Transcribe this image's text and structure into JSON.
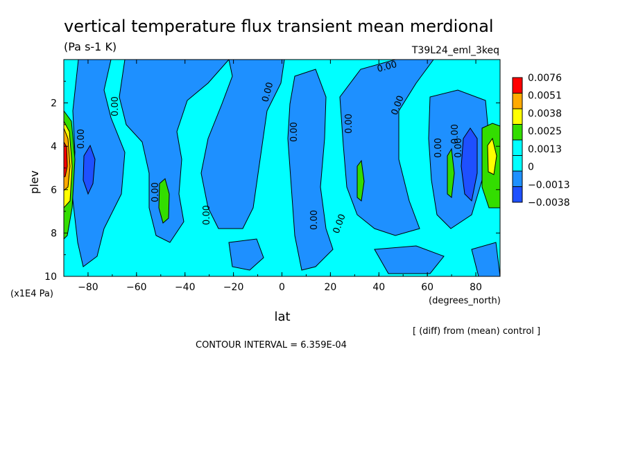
{
  "chart_data": {
    "type": "heatmap",
    "title": "vertical temperature flux transient mean merdional",
    "units": "(Pa s-1 K)",
    "experiment": "T39L24_eml_3keq",
    "xlabel": "lat",
    "xunits": "(degrees_north)",
    "ylabel": "plev",
    "yunits": "(x1E4 Pa)",
    "xlim": [
      -90,
      90
    ],
    "ylim": [
      0,
      10
    ],
    "y_inverted": true,
    "xticks": [
      -80,
      -60,
      -40,
      -20,
      0,
      20,
      40,
      60,
      80
    ],
    "yticks": [
      2,
      4,
      6,
      8,
      10
    ],
    "legend_position": "right",
    "colorbar": {
      "labels": [
        "0.0076",
        "0.0051",
        "0.0038",
        "0.0025",
        "0.0013",
        "0",
        "−0.0013",
        "−0.0038"
      ],
      "colors": [
        "#ff0000",
        "#ffaa00",
        "#ffff00",
        "#33dd00",
        "#00ffff",
        "#00ffff",
        "#1e90ff",
        "#1e50ff"
      ]
    },
    "contour_labels": [
      "0.00",
      "0.00",
      "0.00",
      "0.00",
      "0.00",
      "0.00",
      "0.00",
      "0.00",
      "0.00",
      "0.00",
      "0.00",
      "0.00",
      "0.00",
      "0.00"
    ],
    "contour_interval_text": "CONTOUR INTERVAL = 6.359E-04",
    "footnote": "[ (diff) from (mean) control ]"
  }
}
